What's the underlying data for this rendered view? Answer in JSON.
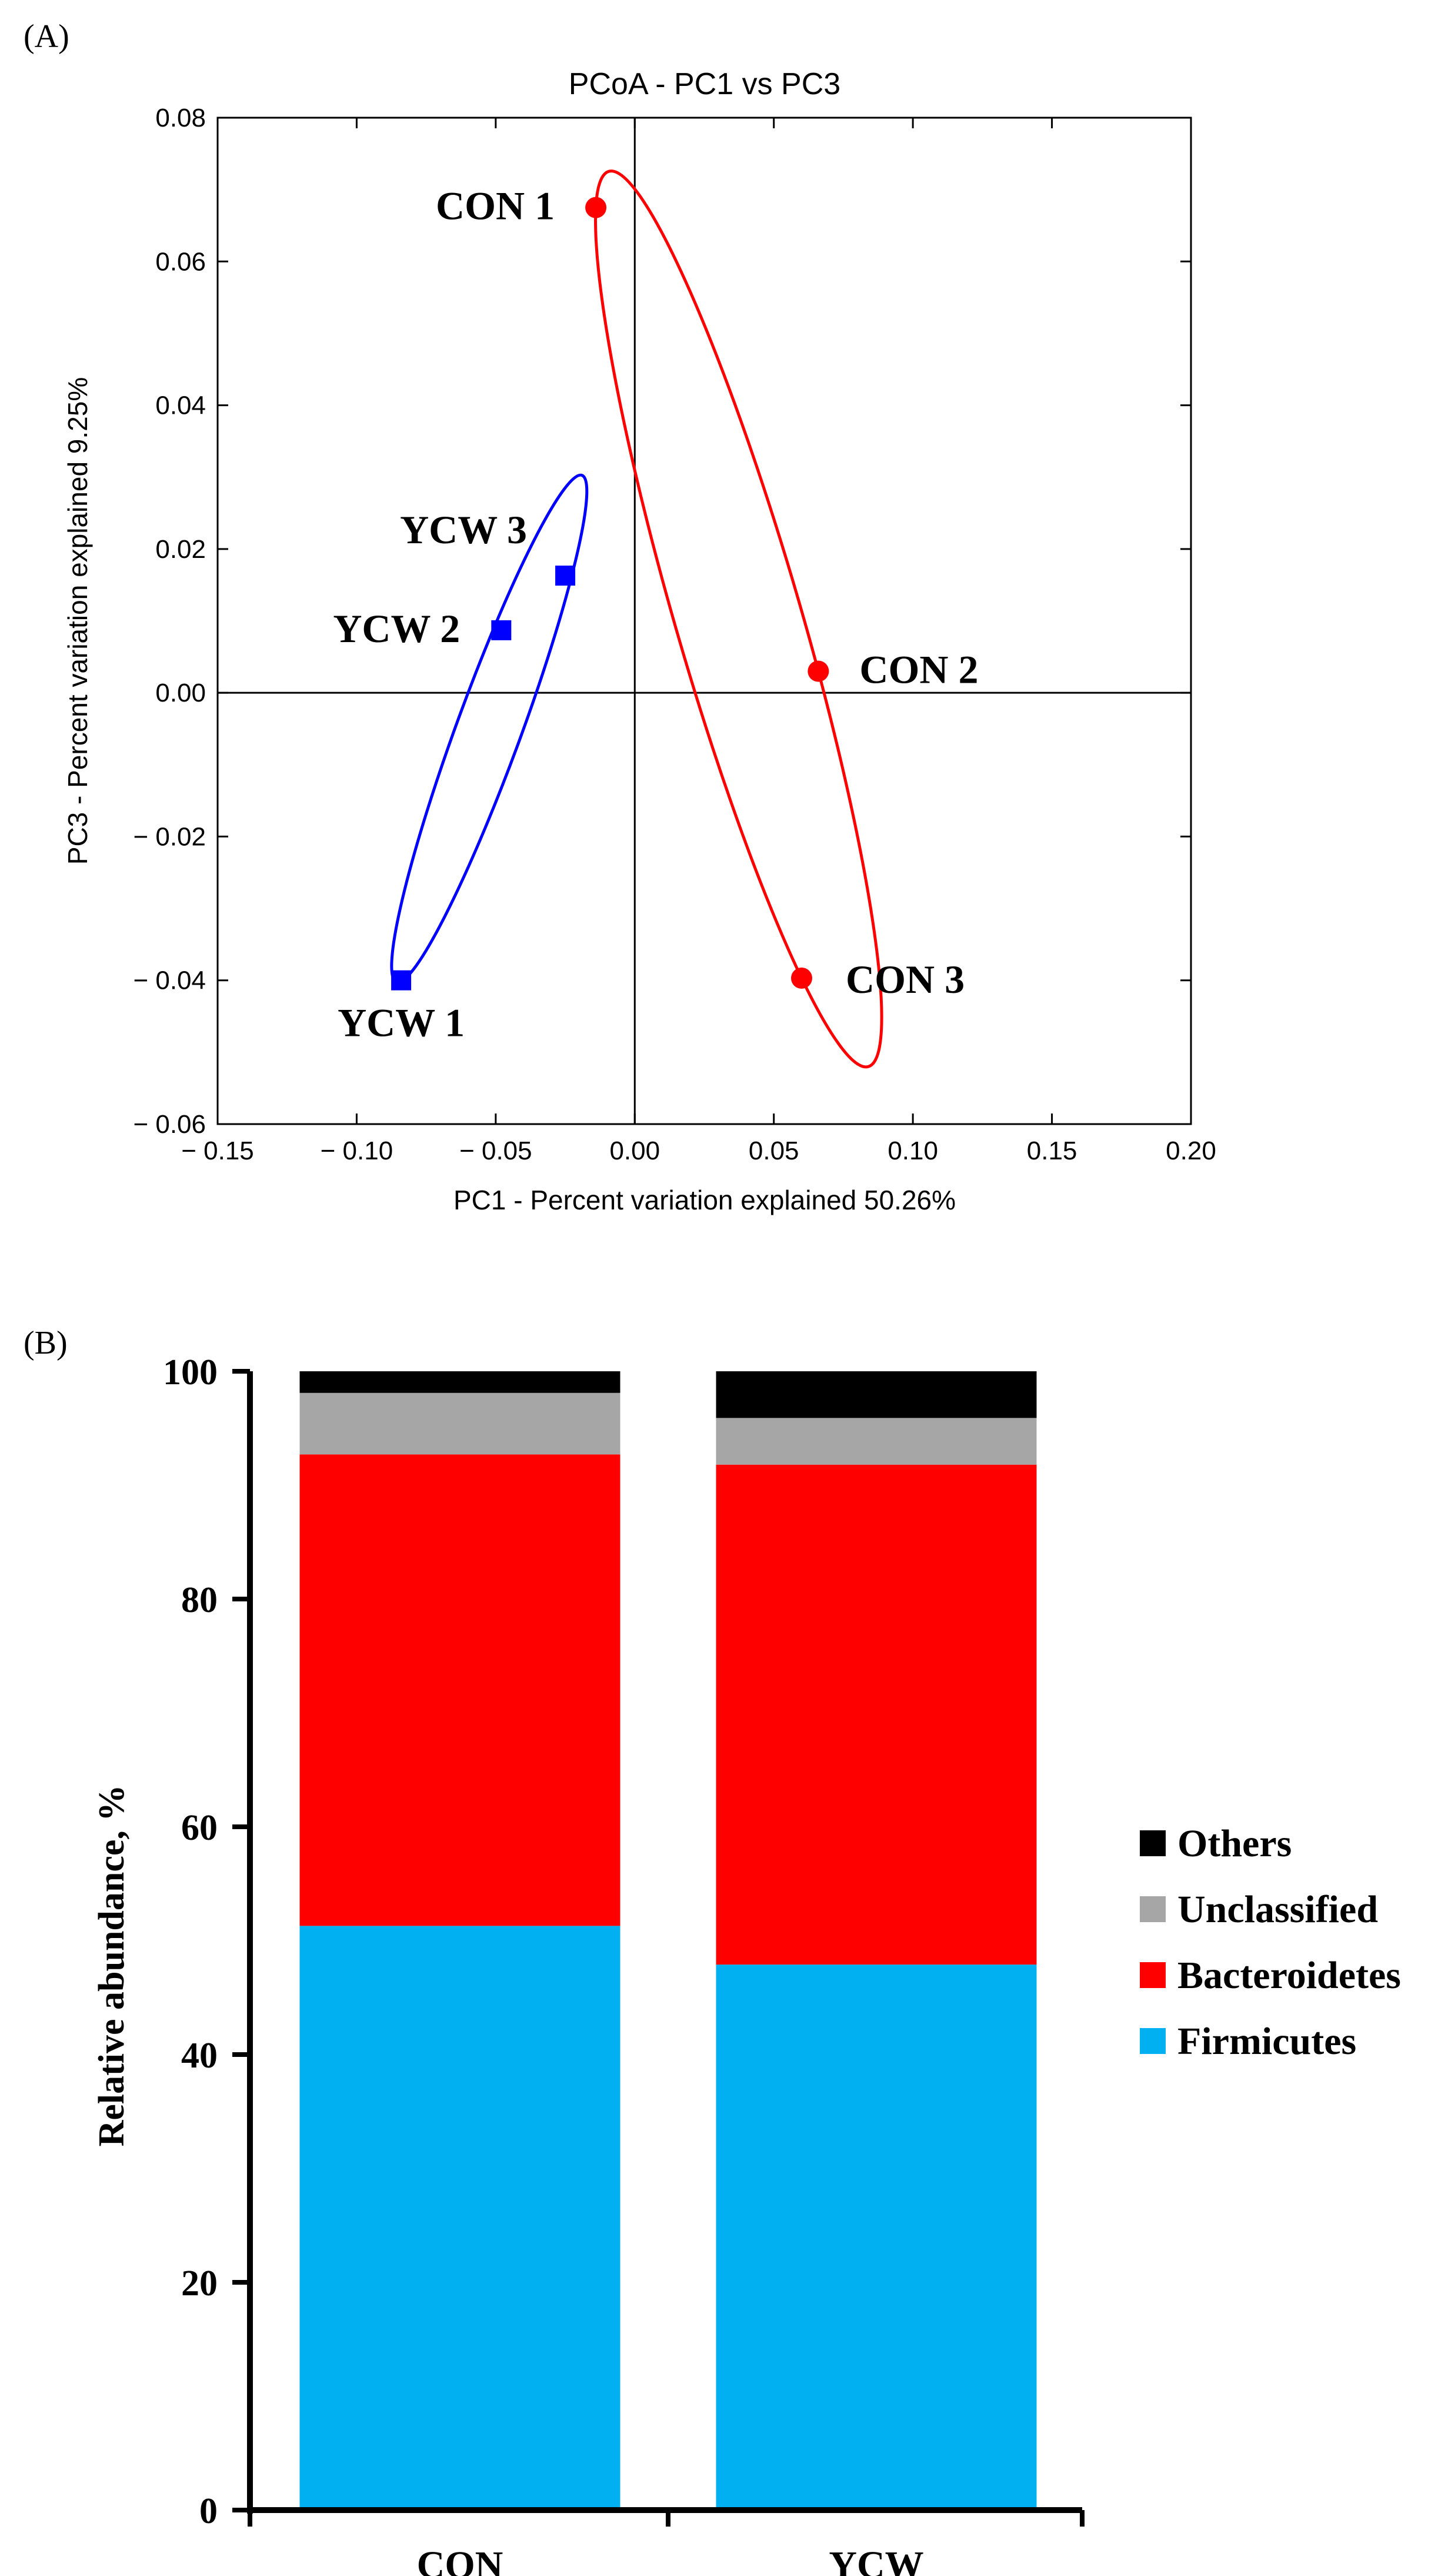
{
  "panels": {
    "a_label": "(A)",
    "b_label": "(B)"
  },
  "chart_data": [
    {
      "type": "scatter",
      "title": "PCoA - PC1 vs PC3",
      "xlabel": "PC1 - Percent variation explained 50.26%",
      "ylabel": "PC3 - Percent variation explained 9.25%",
      "xlim": [
        -0.15,
        0.2
      ],
      "ylim": [
        -0.06,
        0.08
      ],
      "xticks": [
        -0.15,
        -0.1,
        -0.05,
        0.0,
        0.05,
        0.1,
        0.15,
        0.2
      ],
      "xtick_labels": [
        "− 0.15",
        "− 0.10",
        "− 0.05",
        "0.00",
        "0.05",
        "0.10",
        "0.15",
        "0.20"
      ],
      "yticks": [
        -0.06,
        -0.04,
        -0.02,
        0.0,
        0.02,
        0.04,
        0.06,
        0.08
      ],
      "ytick_labels": [
        "− 0.06",
        "− 0.04",
        "− 0.02",
        "0.00",
        "0.02",
        "0.04",
        "0.06",
        "0.08"
      ],
      "zero_lines": true,
      "series": [
        {
          "color": "#ff0000",
          "marker": "circle",
          "points": [
            {
              "label": "CON 1",
              "x": -0.014,
              "y": 0.0675
            },
            {
              "label": "CON 2",
              "x": 0.066,
              "y": 0.003
            },
            {
              "label": "CON 3",
              "x": 0.06,
              "y": -0.0397
            }
          ]
        },
        {
          "color": "#0000ff",
          "marker": "square",
          "points": [
            {
              "label": "YCW 1",
              "x": -0.084,
              "y": -0.04
            },
            {
              "label": "YCW 2",
              "x": -0.048,
              "y": 0.0087
            },
            {
              "label": "YCW 3",
              "x": -0.025,
              "y": 0.0163
            }
          ]
        }
      ]
    },
    {
      "type": "bar",
      "stacked": true,
      "categories": [
        "CON",
        "YCW"
      ],
      "ylabel": "Relative abundance, %",
      "ylim": [
        0,
        100
      ],
      "yticks": [
        0,
        20,
        40,
        60,
        80,
        100
      ],
      "legend_position": "right",
      "series": [
        {
          "name": "Firmicutes",
          "color": "#00b0f0",
          "values": [
            51.3,
            47.9
          ]
        },
        {
          "name": "Bacteroidetes",
          "color": "#ff0000",
          "values": [
            41.4,
            43.9
          ]
        },
        {
          "name": "Unclassified",
          "color": "#a6a6a6",
          "values": [
            5.4,
            4.1
          ]
        },
        {
          "name": "Others",
          "color": "#000000",
          "values": [
            1.9,
            4.1
          ]
        }
      ],
      "legend_order": [
        "Others",
        "Unclassified",
        "Bacteroidetes",
        "Firmicutes"
      ]
    }
  ]
}
